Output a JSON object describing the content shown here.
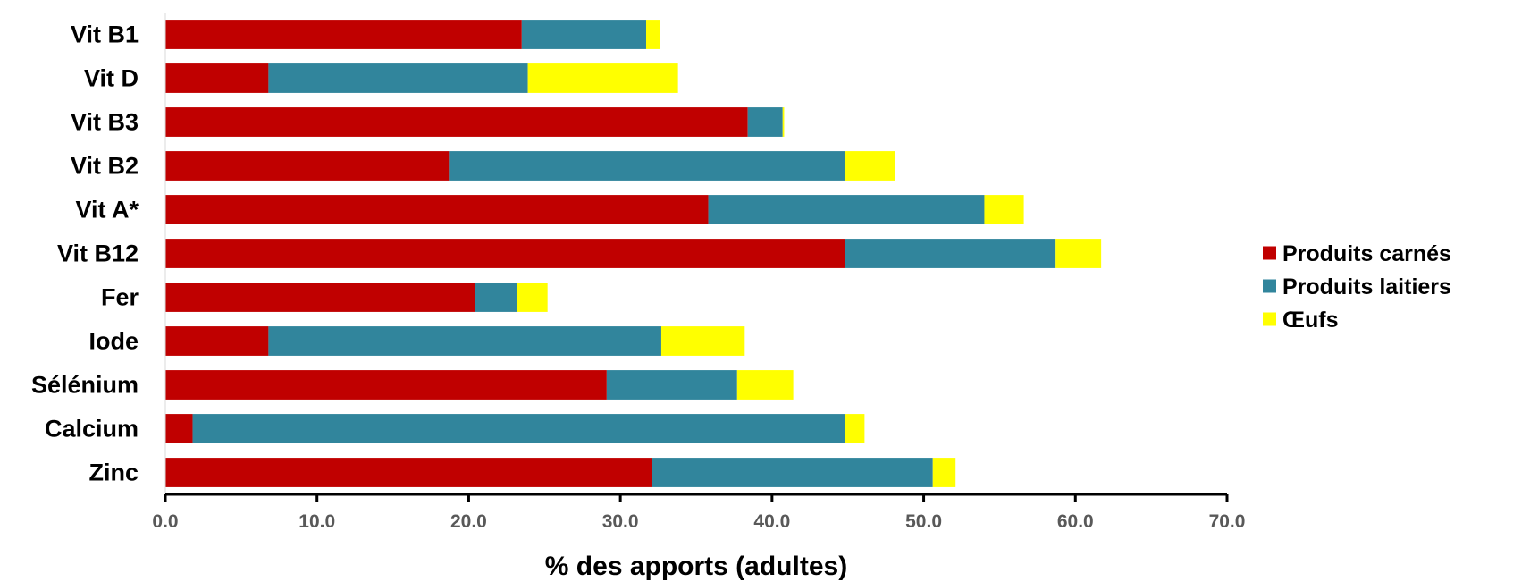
{
  "chart_data": {
    "type": "bar",
    "orientation": "horizontal",
    "stacked": true,
    "categories": [
      "Vit B1",
      "Vit D",
      "Vit B3",
      "Vit B2",
      "Vit A*",
      "Vit B12",
      "Fer",
      "Iode",
      "Sélénium",
      "Calcium",
      "Zinc"
    ],
    "series": [
      {
        "name": "Produits carnés",
        "color": "#C00000",
        "values": [
          23.5,
          6.8,
          38.4,
          18.7,
          35.8,
          44.8,
          20.4,
          6.8,
          29.1,
          1.8,
          32.1
        ]
      },
      {
        "name": "Produits laitiers",
        "color": "#31859C",
        "values": [
          8.2,
          17.1,
          2.3,
          26.1,
          18.2,
          13.9,
          2.8,
          25.9,
          8.6,
          43.0,
          18.5
        ]
      },
      {
        "name": "Œufs",
        "color": "#FFFF00",
        "values": [
          0.9,
          9.9,
          0.1,
          3.3,
          2.6,
          3.0,
          2.0,
          5.5,
          3.7,
          1.3,
          1.5
        ]
      }
    ],
    "xlabel": "% des apports (adultes)",
    "xlim": [
      0,
      70
    ],
    "xticks": [
      "0.0",
      "10.0",
      "20.0",
      "30.0",
      "40.0",
      "50.0",
      "60.0",
      "70.0"
    ],
    "grid": false,
    "legend": "right"
  }
}
